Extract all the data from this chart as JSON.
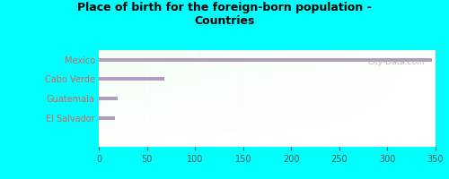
{
  "title": "Place of birth for the foreign-born population -\nCountries",
  "categories": [
    "Mexico",
    "Cabo Verde",
    "Guatemala",
    "El Salvador"
  ],
  "values": [
    346,
    68,
    20,
    17
  ],
  "bar_color": "#b09fbc",
  "background_outer": "#00ffff",
  "text_color": "#cc6666",
  "title_color": "#000000",
  "xlim": [
    0,
    350
  ],
  "xticks": [
    0,
    50,
    100,
    150,
    200,
    250,
    300,
    350
  ],
  "watermark": "City-Data.com",
  "bar_height": 0.18,
  "tick_color": "#555555"
}
